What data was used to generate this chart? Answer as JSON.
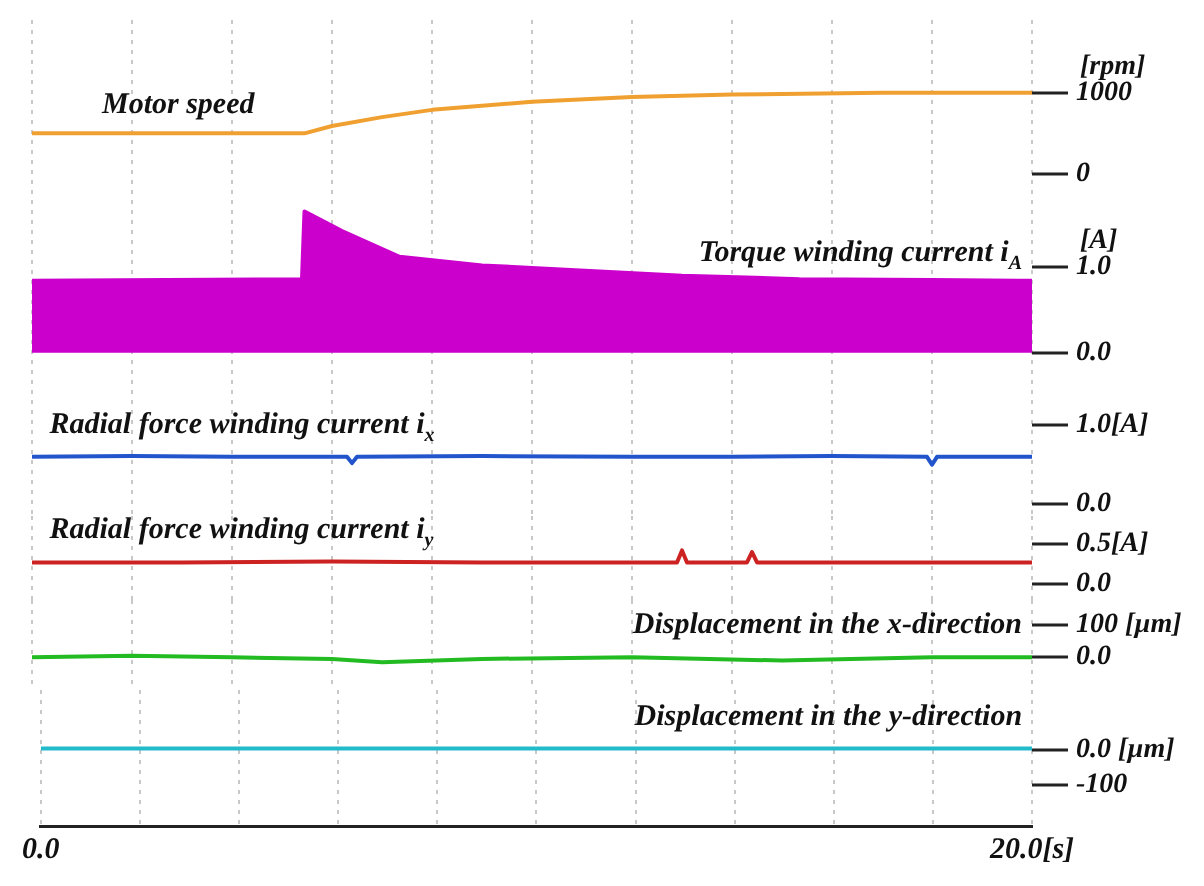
{
  "chart_data": [
    {
      "type": "line",
      "xlim": [
        0,
        20
      ],
      "xticks": [
        {
          "value": 0,
          "label": null
        },
        {
          "value": 2,
          "label": null
        },
        {
          "value": 4,
          "label": null
        },
        {
          "value": 6,
          "label": null
        },
        {
          "value": 8,
          "label": null
        },
        {
          "value": 10,
          "label": null
        },
        {
          "value": 12,
          "label": null
        },
        {
          "value": 14,
          "label": null
        },
        {
          "value": 16,
          "label": null
        },
        {
          "value": 18,
          "label": null
        },
        {
          "value": 20,
          "label": null
        }
      ],
      "ylim": [
        -200,
        1900
      ],
      "yticks": [
        0,
        1000
      ],
      "ylabel": "[rpm]",
      "grid": "x",
      "tick_labels": "y",
      "x": [
        0,
        5.45,
        6,
        7,
        8,
        10,
        12,
        14,
        17,
        20
      ],
      "series": [
        {
          "name": "Motor speed",
          "color": "#f0a030",
          "values": [
            500,
            500,
            590,
            700,
            790,
            890,
            950,
            980,
            1000,
            1000
          ]
        }
      ]
    },
    {
      "type": "area",
      "xlim": [
        0,
        20
      ],
      "xticks": [
        {
          "value": 0,
          "label": null
        },
        {
          "value": 2,
          "label": null
        },
        {
          "value": 4,
          "label": null
        },
        {
          "value": 6,
          "label": null
        },
        {
          "value": 8,
          "label": null
        },
        {
          "value": 10,
          "label": null
        },
        {
          "value": 12,
          "label": null
        },
        {
          "value": 14,
          "label": null
        },
        {
          "value": 16,
          "label": null
        },
        {
          "value": 18,
          "label": null
        },
        {
          "value": 20,
          "label": null
        }
      ],
      "ylim": [
        -0.2,
        1.9
      ],
      "yticks": [
        {
          "value": 0,
          "label": "0.0"
        },
        {
          "value": 1,
          "label": "1.0"
        }
      ],
      "ylabel": "[A]",
      "grid": "x",
      "tick_labels": "y",
      "x": [
        0,
        5.4,
        5.45,
        6.2,
        7.35,
        9,
        11.35,
        13,
        15.35,
        18,
        20
      ],
      "series": [
        {
          "name": "Torque winding current i$_{A}$",
          "color": "#cc00cc",
          "values": [
            0.84,
            0.86,
            1.65,
            1.42,
            1.12,
            1.02,
            0.95,
            0.9,
            0.86,
            0.85,
            0.84
          ]
        }
      ]
    },
    {
      "type": "line",
      "xlim": [
        0,
        20
      ],
      "xticks": [
        {
          "value": 0,
          "label": null
        },
        {
          "value": 2,
          "label": null
        },
        {
          "value": 4,
          "label": null
        },
        {
          "value": 6,
          "label": null
        },
        {
          "value": 8,
          "label": null
        },
        {
          "value": 10,
          "label": null
        },
        {
          "value": 12,
          "label": null
        },
        {
          "value": 14,
          "label": null
        },
        {
          "value": 16,
          "label": null
        },
        {
          "value": 18,
          "label": null
        },
        {
          "value": 20,
          "label": null
        }
      ],
      "ylim": [
        -0.15,
        1.7
      ],
      "yticks": [
        {
          "value": 0,
          "label": "0.0"
        },
        {
          "value": 1,
          "label": "1.0[A]"
        }
      ],
      "grid": "x",
      "tick_labels": "y",
      "x": [
        0,
        2,
        4,
        6.3,
        6.4,
        6.5,
        9,
        12,
        14,
        16,
        17.9,
        18,
        18.1,
        20
      ],
      "series": [
        {
          "name": "Radial force winding current i$_{x}$",
          "color": "#2255cc",
          "values": [
            0.6,
            0.61,
            0.6,
            0.6,
            0.52,
            0.6,
            0.61,
            0.6,
            0.6,
            0.61,
            0.6,
            0.5,
            0.6,
            0.6
          ]
        }
      ]
    },
    {
      "type": "line",
      "xlim": [
        0,
        20
      ],
      "xticks": [
        {
          "value": 0,
          "label": null
        },
        {
          "value": 2,
          "label": null
        },
        {
          "value": 4,
          "label": null
        },
        {
          "value": 6,
          "label": null
        },
        {
          "value": 8,
          "label": null
        },
        {
          "value": 10,
          "label": null
        },
        {
          "value": 12,
          "label": null
        },
        {
          "value": 14,
          "label": null
        },
        {
          "value": 16,
          "label": null
        },
        {
          "value": 18,
          "label": null
        },
        {
          "value": 20,
          "label": null
        }
      ],
      "ylim": [
        -0.2,
        0.85
      ],
      "yticks": [
        {
          "value": 0,
          "label": "0.0"
        },
        {
          "value": 0.5,
          "label": "0.5[A]"
        }
      ],
      "grid": "x",
      "tick_labels": "y",
      "x": [
        0,
        3,
        6,
        9,
        12.9,
        13,
        13.1,
        14.3,
        14.4,
        14.5,
        17,
        20
      ],
      "series": [
        {
          "name": "Radial force winding current i$_{y}$",
          "color": "#cc2222",
          "values": [
            0.27,
            0.27,
            0.28,
            0.27,
            0.27,
            0.42,
            0.27,
            0.27,
            0.4,
            0.27,
            0.27,
            0.27
          ]
        }
      ]
    },
    {
      "type": "line",
      "xlim": [
        0,
        20
      ],
      "xticks": [
        {
          "value": 0,
          "label": null
        },
        {
          "value": 2,
          "label": null
        },
        {
          "value": 4,
          "label": null
        },
        {
          "value": 6,
          "label": null
        },
        {
          "value": 8,
          "label": null
        },
        {
          "value": 10,
          "label": null
        },
        {
          "value": 12,
          "label": null
        },
        {
          "value": 14,
          "label": null
        },
        {
          "value": 16,
          "label": null
        },
        {
          "value": 18,
          "label": null
        },
        {
          "value": 20,
          "label": null
        }
      ],
      "ylim": [
        -100,
        175
      ],
      "yticks": [
        {
          "value": 0,
          "label": "0.0"
        },
        {
          "value": 100,
          "label": "100 [µm]"
        }
      ],
      "grid": "x",
      "tick_labels": "y",
      "x": [
        0,
        2,
        4,
        6,
        7,
        9,
        12,
        15,
        18,
        20
      ],
      "series": [
        {
          "name": "Displacement in the x-direction",
          "color": "#22bb22",
          "values": [
            0,
            5,
            0,
            -5,
            -15,
            -5,
            0,
            -10,
            0,
            0
          ]
        }
      ]
    },
    {
      "type": "line",
      "xlim": [
        0,
        20
      ],
      "xticks": [
        {
          "value": 0,
          "label": "0.0"
        },
        {
          "value": 2,
          "label": null
        },
        {
          "value": 4,
          "label": null
        },
        {
          "value": 6,
          "label": null
        },
        {
          "value": 8,
          "label": null
        },
        {
          "value": 10,
          "label": null
        },
        {
          "value": 12,
          "label": null
        },
        {
          "value": 14,
          "label": null
        },
        {
          "value": 16,
          "label": null
        },
        {
          "value": 18,
          "label": null
        },
        {
          "value": 20,
          "label": "20.0[s]"
        }
      ],
      "ylim": [
        -220,
        175
      ],
      "yticks": [
        {
          "value": -100,
          "label": "-100"
        },
        {
          "value": 0,
          "label": "0.0 [µm]"
        }
      ],
      "grid": "x",
      "x": [
        0,
        5,
        10,
        15,
        20
      ],
      "series": [
        {
          "name": "Displacement in the y-direction",
          "color": "#22bbcc",
          "values": [
            5,
            5,
            5,
            5,
            5
          ]
        }
      ]
    }
  ]
}
